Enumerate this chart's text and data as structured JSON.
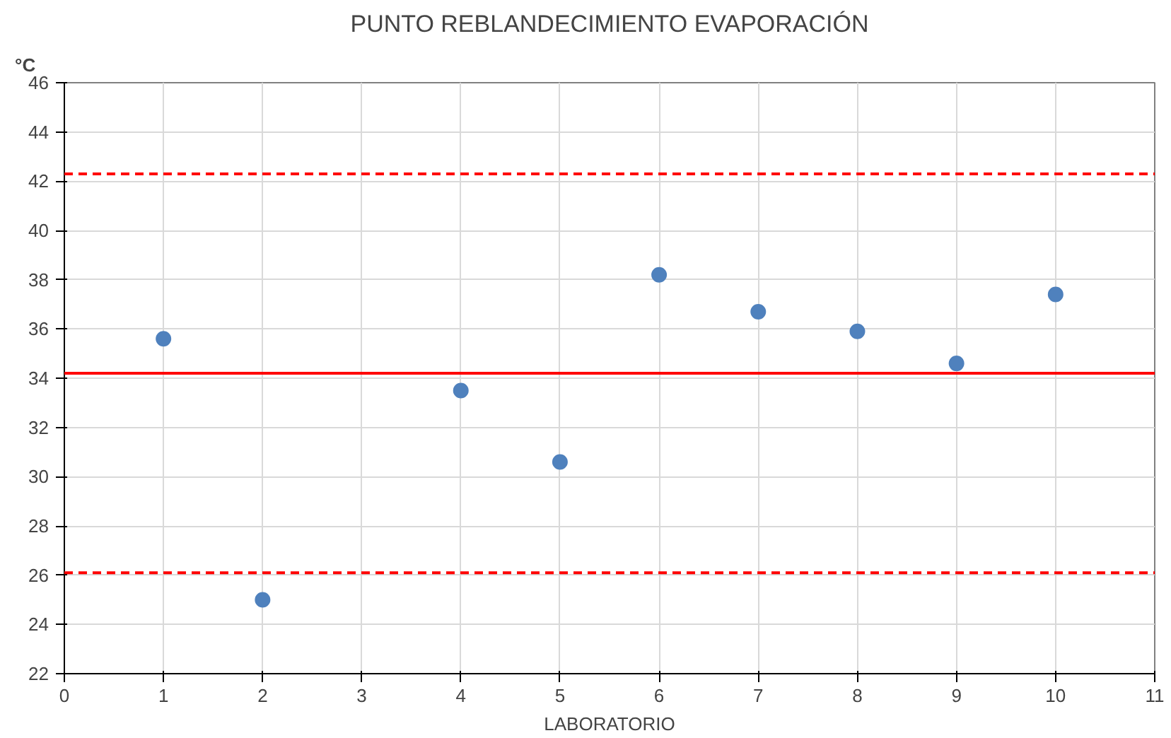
{
  "chart_data": {
    "type": "scatter",
    "title": "PUNTO REBLANDECIMIENTO EVAPORACIÓN",
    "xlabel": "LABORATORIO",
    "ylabel": "°C",
    "x": [
      1,
      2,
      4,
      5,
      6,
      7,
      8,
      9,
      10
    ],
    "series": [
      {
        "color": "#4f81bd",
        "values": [
          35.6,
          25.0,
          33.5,
          30.6,
          38.2,
          36.7,
          35.9,
          34.6,
          37.4
        ]
      }
    ],
    "xlim": [
      0,
      11
    ],
    "xticks": [
      0,
      1,
      2,
      3,
      4,
      5,
      6,
      7,
      8,
      9,
      10,
      11
    ],
    "ylim": [
      22,
      46
    ],
    "yticks": [
      22,
      24,
      26,
      28,
      30,
      32,
      34,
      36,
      38,
      40,
      42,
      44,
      46
    ],
    "ref_lines": [
      {
        "axis": "y",
        "value": 42.3,
        "color": "#ff0000",
        "line_style": "dashed"
      },
      {
        "axis": "y",
        "value": 34.2,
        "color": "#ff0000",
        "line_style": "solid"
      },
      {
        "axis": "y",
        "value": 26.1,
        "color": "#ff0000",
        "line_style": "dashed"
      }
    ],
    "grid": true,
    "marker": "circle"
  }
}
